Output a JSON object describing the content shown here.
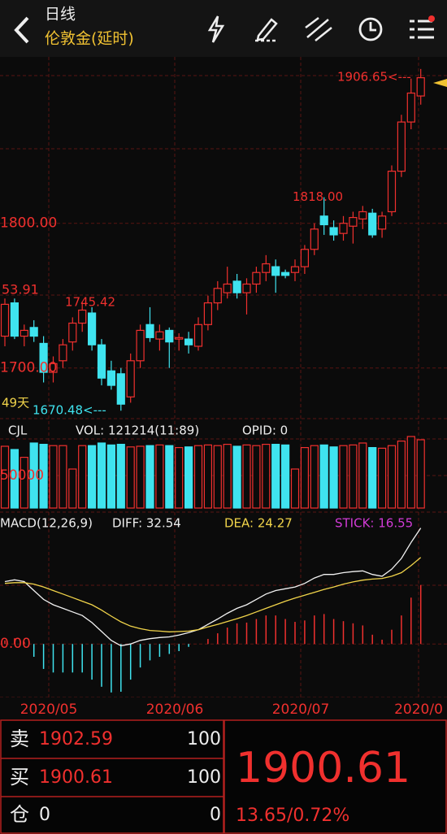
{
  "header": {
    "title": "日线",
    "subtitle": "伦敦金(延时)"
  },
  "chart": {
    "price": {
      "ylim": [
        1665,
        1915
      ],
      "yticks": [
        {
          "value": 1800,
          "label": "1800.00"
        },
        {
          "value": 1700,
          "label": "1700.00"
        }
      ],
      "annotations": [
        {
          "value": 1906.65,
          "label": "1906.65<---"
        },
        {
          "value": 1818,
          "label": "1818.00"
        },
        {
          "value": 1745.42,
          "label": "1745.42"
        },
        {
          "value": 1670.48,
          "label": "1670.48<---"
        }
      ],
      "edge_labels": [
        "53.91",
        "49天"
      ],
      "colors": {
        "up": "#f0302e",
        "down": "#3fe3ef"
      }
    },
    "candles": {
      "open": [
        1722,
        1745,
        1722,
        1728,
        1717,
        1697,
        1705,
        1718,
        1731,
        1738,
        1716,
        1698,
        1696,
        1680,
        1705,
        1730,
        1720,
        1726,
        1720,
        1720,
        1715,
        1730,
        1745,
        1752,
        1760,
        1752,
        1758,
        1766,
        1770,
        1766,
        1766,
        1770,
        1782,
        1805,
        1797,
        1793,
        1798,
        1803,
        1807,
        1796,
        1808,
        1836,
        1870,
        1888
      ],
      "high": [
        1748,
        1748,
        1730,
        1733,
        1722,
        1708,
        1720,
        1735,
        1745.42,
        1742,
        1720,
        1705,
        1700,
        1710,
        1730,
        1742,
        1730,
        1728,
        1724,
        1725,
        1735,
        1750,
        1760,
        1770,
        1765,
        1762,
        1770,
        1778,
        1775,
        1768,
        1775,
        1785,
        1800,
        1818,
        1802,
        1805,
        1808,
        1812,
        1810,
        1808,
        1840,
        1875,
        1900,
        1906.65
      ],
      "low": [
        1715,
        1720,
        1715,
        1718,
        1690,
        1690,
        1700,
        1712,
        1725,
        1712,
        1688,
        1685,
        1670.48,
        1676,
        1700,
        1718,
        1712,
        1700,
        1712,
        1710,
        1712,
        1726,
        1740,
        1748,
        1748,
        1737,
        1752,
        1760,
        1752,
        1762,
        1760,
        1765,
        1778,
        1792,
        1788,
        1788,
        1786,
        1796,
        1790,
        1790,
        1805,
        1832,
        1865,
        1882
      ],
      "close": [
        1744,
        1722,
        1726,
        1722,
        1697,
        1703,
        1716,
        1731,
        1740,
        1716,
        1693,
        1688,
        1675,
        1705,
        1726,
        1721,
        1725,
        1718,
        1721,
        1716,
        1730,
        1745,
        1755,
        1758,
        1752,
        1758,
        1766,
        1772,
        1764,
        1764,
        1770,
        1782,
        1796,
        1799,
        1792,
        1800,
        1804,
        1808,
        1792,
        1805,
        1836,
        1870,
        1890,
        1900.61
      ]
    },
    "volume": {
      "title": "CJL",
      "vol": "VOL: 121214(11:89)",
      "opid": "OPID: 0",
      "ylim": [
        0,
        112500
      ],
      "yticks": [
        {
          "value": 50000,
          "label": "50000"
        }
      ],
      "values": [
        95000,
        90000,
        78000,
        100000,
        98000,
        96000,
        96000,
        60000,
        96000,
        96000,
        100000,
        97000,
        98000,
        94000,
        95000,
        96000,
        97000,
        96000,
        93000,
        94000,
        96000,
        97000,
        96000,
        98000,
        95000,
        97000,
        96000,
        98000,
        98000,
        97000,
        60000,
        93000,
        96000,
        97000,
        94000,
        96000,
        97000,
        100000,
        93000,
        92000,
        96000,
        103000,
        110000,
        105000
      ]
    },
    "macd": {
      "title": "MACD(12,26,9)",
      "diff_label": "DIFF: 32.54",
      "dea_label": "DEA: 24.27",
      "stick_label": "STICK: 16.55",
      "ylim": [
        -15,
        37
      ],
      "yticks": [
        {
          "value": 0,
          "label": "0.00"
        }
      ],
      "diff": [
        17.5,
        18,
        17.5,
        15,
        12.5,
        11,
        10,
        9,
        8,
        6,
        3.5,
        1,
        -0.5,
        0,
        1,
        1.5,
        1.8,
        2,
        2.5,
        3.2,
        4,
        5.5,
        7,
        8.6,
        10,
        11,
        12.5,
        14,
        15,
        15.5,
        16,
        17,
        18.5,
        19.5,
        19.5,
        20,
        20.3,
        20.5,
        19.5,
        19,
        21,
        24,
        28.5,
        32.54
      ],
      "dea": [
        17,
        17.2,
        17.2,
        16.8,
        16,
        15,
        14,
        13,
        12,
        11,
        9.5,
        7.8,
        6.2,
        5,
        4.3,
        3.8,
        3.6,
        3.4,
        3.5,
        3.6,
        4,
        4.8,
        5.5,
        6.3,
        7.1,
        8,
        9,
        10,
        11,
        12,
        12.9,
        13.7,
        14.5,
        15.3,
        16,
        16.8,
        17.4,
        17.9,
        18.2,
        18.4,
        19,
        20,
        22,
        24.27
      ],
      "stick": [
        1,
        1.6,
        0.6,
        -3.6,
        -7,
        -8,
        -8,
        -8,
        -8,
        -10,
        -12,
        -13.6,
        -13.4,
        -10,
        -6.6,
        -4.6,
        -3.6,
        -2.8,
        -2,
        -0.8,
        0,
        1.4,
        3,
        4.6,
        5.8,
        6,
        7,
        8,
        8,
        7,
        6.2,
        6.6,
        8,
        8.4,
        7,
        6.4,
        5.8,
        5.2,
        2.6,
        1.2,
        4,
        8,
        13,
        16.55
      ]
    },
    "x_labels": [
      "2020/05",
      "2020/06",
      "2020/07",
      "2020/0"
    ]
  },
  "quote": {
    "rows": [
      [
        "卖",
        "1902.59",
        "100"
      ],
      [
        "买",
        "1900.61",
        "100"
      ],
      [
        "仓",
        "0",
        "0"
      ]
    ],
    "price": "1900.61",
    "change": "13.65/0.72%"
  }
}
